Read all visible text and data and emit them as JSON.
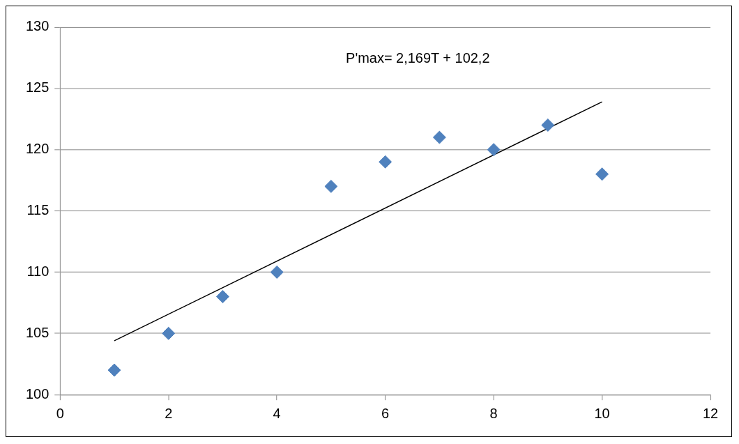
{
  "chart_data": {
    "type": "scatter",
    "marker": "diamond",
    "grid": "y",
    "legend": false,
    "xlim": [
      0,
      12
    ],
    "xticks": [
      0,
      2,
      4,
      6,
      8,
      10,
      12
    ],
    "ylim": [
      100,
      130
    ],
    "yticks": [
      100,
      105,
      110,
      115,
      120,
      125,
      130
    ],
    "annotations": [
      "P'max= 2,169T + 102,2"
    ],
    "series": [
      {
        "color": "#4f81bd",
        "x": [
          1,
          2,
          3,
          4,
          5,
          6,
          7,
          8,
          9,
          10
        ],
        "values": [
          102,
          105,
          108,
          110,
          117,
          119,
          121,
          120,
          122,
          118
        ]
      },
      {
        "type": "line",
        "color": "#000000",
        "marker": "none",
        "x": [
          1,
          10
        ],
        "values": [
          104.4,
          123.9
        ]
      }
    ]
  }
}
